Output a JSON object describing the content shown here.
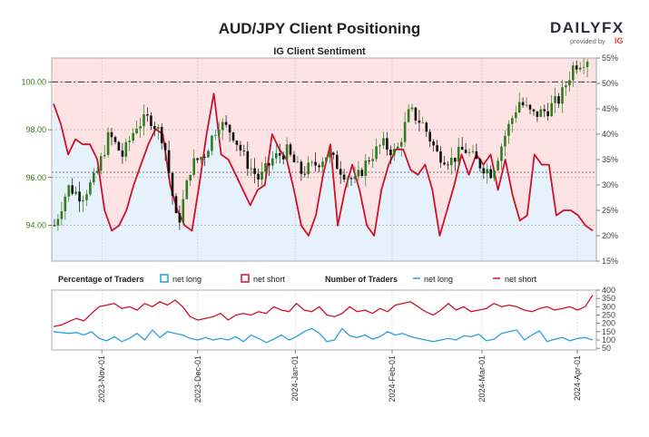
{
  "title": "AUD/JPY Client Positioning",
  "subtitle": "IG Client Sentiment",
  "brand": {
    "logo_main": "DAILYFX",
    "logo_sub": "provided by",
    "logo_ig": "IG",
    "color_dark": "#2b2b3b",
    "color_accent": "#e8423a"
  },
  "colors": {
    "net_long": "#29a0dd",
    "net_short": "#d0102b",
    "price_up": "#2e7d1e",
    "price_down": "#111111",
    "short_zone": "#fde3e3",
    "long_zone": "#e6f2fb",
    "left_axis": "#3a7d1e"
  },
  "chart_data": [
    {
      "type": "candlestick",
      "name": "main",
      "price_ticks": [
        "94.00",
        "96.00",
        "98.00",
        "100.00"
      ],
      "price_tick_values": [
        94,
        96,
        98,
        100
      ],
      "price_ylim": [
        92.5,
        101.0
      ],
      "pct_ticks": [
        "15%",
        "20%",
        "25%",
        "30%",
        "35%",
        "40%",
        "45%",
        "50%",
        "55%"
      ],
      "pct_tick_values": [
        15,
        20,
        25,
        30,
        35,
        40,
        45,
        50,
        55
      ],
      "pct_ylim": [
        15,
        55
      ],
      "reference_lines": {
        "price": 100.0,
        "pct": 32.5
      },
      "price_start": 94.0,
      "price_path": [
        94.0,
        95.6,
        95.2,
        96.0,
        97.8,
        96.9,
        98.2,
        98.5,
        97.6,
        93.9,
        96.5,
        97.0,
        98.3,
        97.9,
        96.7,
        95.9,
        96.8,
        97.1,
        96.2,
        96.5,
        97.0,
        96.3,
        95.8,
        96.8,
        97.4,
        97.0,
        98.8,
        98.2,
        97.0,
        96.7,
        97.2,
        96.6,
        96.2,
        97.8,
        99.2,
        98.6,
        98.8,
        99.3,
        100.7,
        101.0
      ],
      "net_short_pct_path": [
        46,
        42,
        36,
        39,
        38,
        38,
        35,
        25,
        21,
        22,
        25,
        30,
        34,
        38,
        41,
        40,
        30,
        25,
        22,
        21,
        30,
        40,
        48,
        36,
        35,
        32,
        29,
        26,
        29,
        30,
        40,
        37,
        35,
        29,
        22,
        20,
        24,
        32,
        38,
        22,
        29,
        34,
        29,
        22,
        20,
        29,
        34,
        37,
        37,
        33,
        32,
        34,
        29,
        20,
        25,
        30,
        36,
        32,
        36,
        34,
        36,
        29,
        35,
        28,
        23,
        24,
        36,
        34,
        34,
        24,
        25,
        25,
        24,
        22,
        21
      ]
    },
    {
      "type": "line",
      "name": "number_of_traders",
      "ticks": [
        "50",
        "100",
        "150",
        "200",
        "250",
        "300",
        "350",
        "400"
      ],
      "tick_values": [
        50,
        100,
        150,
        200,
        250,
        300,
        350,
        400
      ],
      "ylim": [
        40,
        400
      ],
      "series": [
        {
          "name": "net long",
          "values": [
            150,
            145,
            140,
            145,
            130,
            150,
            110,
            95,
            120,
            90,
            110,
            140,
            100,
            160,
            115,
            150,
            140,
            130,
            110,
            100,
            115,
            100,
            110,
            100,
            120,
            90,
            130,
            110,
            85,
            105,
            130,
            100,
            120,
            150,
            170,
            140,
            90,
            100,
            170,
            125,
            115,
            130,
            105,
            120,
            150,
            130,
            140,
            120,
            110,
            100,
            90,
            100,
            110,
            100,
            125,
            120,
            135,
            95,
            105,
            140,
            150,
            160,
            100,
            130,
            155,
            90,
            105,
            115,
            95,
            110,
            115,
            100
          ]
        },
        {
          "name": "net short",
          "values": [
            180,
            190,
            210,
            230,
            215,
            260,
            300,
            310,
            320,
            290,
            300,
            280,
            320,
            300,
            330,
            310,
            340,
            300,
            240,
            220,
            230,
            240,
            260,
            220,
            250,
            260,
            250,
            270,
            260,
            300,
            280,
            270,
            320,
            280,
            270,
            300,
            250,
            240,
            260,
            300,
            270,
            280,
            260,
            290,
            270,
            310,
            320,
            330,
            300,
            270,
            250,
            280,
            320,
            280,
            300,
            270,
            280,
            290,
            320,
            300,
            310,
            300,
            280,
            270,
            290,
            300,
            280,
            290,
            300,
            280,
            300,
            370
          ]
        }
      ]
    }
  ],
  "x_axis": {
    "dates": [
      "2023-Nov-01",
      "2023-Dec-01",
      "2024-Jan-01",
      "2024-Feb-01",
      "2024-Mar-01",
      "2024-Apr-01"
    ],
    "date_positions": [
      0.092,
      0.268,
      0.447,
      0.625,
      0.79,
      0.965
    ]
  },
  "legends": {
    "pct_title": "Percentage of Traders",
    "pct_long": "net long",
    "pct_short": "net short",
    "num_title": "Number of Traders",
    "num_long": "net long",
    "num_short": "net short"
  }
}
